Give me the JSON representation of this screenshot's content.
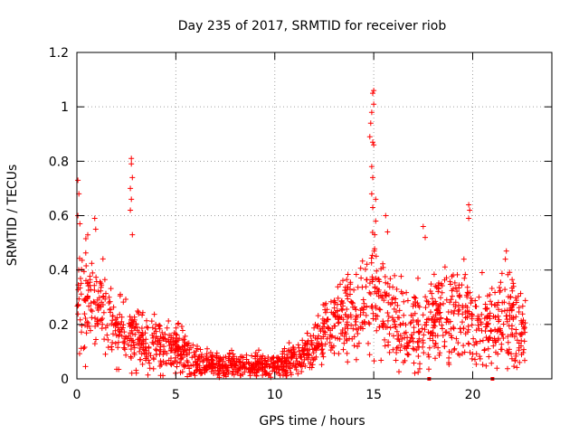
{
  "chart_data": {
    "type": "scatter",
    "title": "Day 235 of 2017, SRMTID for receiver riob",
    "xlabel": "GPS time / hours",
    "ylabel": "SRMTID / TECUs",
    "xlim": [
      0,
      24
    ],
    "ylim": [
      0,
      1.2
    ],
    "xticks": [
      0,
      5,
      10,
      15,
      20
    ],
    "xtick_labels": [
      "0",
      "5",
      "10",
      "15",
      "20"
    ],
    "yticks": [
      0,
      0.2,
      0.4,
      0.6,
      0.8,
      1,
      1.2
    ],
    "ytick_labels": [
      "0",
      "0.2",
      "0.4",
      "0.6",
      "0.8",
      "1",
      "1.2"
    ],
    "grid": true,
    "marker": "+",
    "series_color": "#ff0000",
    "envelope": {
      "description": "approximate cluster of SRMTID points: hour, typical value, spread",
      "x": [
        0.0,
        0.5,
        1.0,
        1.5,
        2.0,
        2.5,
        3.0,
        3.5,
        4.0,
        4.5,
        5.0,
        5.5,
        6.0,
        7.0,
        8.0,
        9.0,
        10.0,
        10.5,
        11.0,
        11.5,
        12.0,
        12.5,
        13.0,
        13.5,
        14.0,
        14.5,
        15.0,
        15.5,
        16.0,
        16.5,
        17.0,
        17.5,
        18.0,
        18.5,
        19.0,
        19.5,
        20.0,
        20.5,
        21.0,
        21.5,
        22.0,
        22.5,
        22.7
      ],
      "center": [
        0.3,
        0.3,
        0.27,
        0.22,
        0.18,
        0.16,
        0.15,
        0.13,
        0.12,
        0.11,
        0.12,
        0.09,
        0.06,
        0.05,
        0.05,
        0.05,
        0.05,
        0.06,
        0.07,
        0.09,
        0.12,
        0.17,
        0.22,
        0.25,
        0.27,
        0.3,
        0.32,
        0.26,
        0.22,
        0.18,
        0.17,
        0.2,
        0.24,
        0.26,
        0.25,
        0.24,
        0.22,
        0.2,
        0.2,
        0.21,
        0.21,
        0.19,
        0.15
      ],
      "spread": [
        0.16,
        0.14,
        0.12,
        0.1,
        0.09,
        0.08,
        0.08,
        0.07,
        0.07,
        0.06,
        0.06,
        0.05,
        0.04,
        0.03,
        0.03,
        0.03,
        0.03,
        0.04,
        0.04,
        0.05,
        0.06,
        0.09,
        0.11,
        0.12,
        0.12,
        0.13,
        0.14,
        0.13,
        0.12,
        0.11,
        0.11,
        0.12,
        0.13,
        0.13,
        0.12,
        0.12,
        0.11,
        0.11,
        0.11,
        0.11,
        0.11,
        0.1,
        0.1
      ]
    },
    "highlights": [
      {
        "x": 0.05,
        "y": 0.73
      },
      {
        "x": 0.1,
        "y": 0.68
      },
      {
        "x": 0.05,
        "y": 0.6
      },
      {
        "x": 0.15,
        "y": 0.57
      },
      {
        "x": 0.9,
        "y": 0.59
      },
      {
        "x": 0.95,
        "y": 0.55
      },
      {
        "x": 2.75,
        "y": 0.81
      },
      {
        "x": 2.75,
        "y": 0.79
      },
      {
        "x": 2.8,
        "y": 0.74
      },
      {
        "x": 2.7,
        "y": 0.7
      },
      {
        "x": 2.75,
        "y": 0.66
      },
      {
        "x": 2.7,
        "y": 0.62
      },
      {
        "x": 2.8,
        "y": 0.53
      },
      {
        "x": 14.8,
        "y": 0.89
      },
      {
        "x": 14.85,
        "y": 0.94
      },
      {
        "x": 14.9,
        "y": 0.98
      },
      {
        "x": 14.95,
        "y": 1.05
      },
      {
        "x": 15.0,
        "y": 1.06
      },
      {
        "x": 15.0,
        "y": 1.01
      },
      {
        "x": 14.95,
        "y": 0.87
      },
      {
        "x": 15.0,
        "y": 0.86
      },
      {
        "x": 14.9,
        "y": 0.78
      },
      {
        "x": 14.95,
        "y": 0.74
      },
      {
        "x": 14.9,
        "y": 0.68
      },
      {
        "x": 14.95,
        "y": 0.63
      },
      {
        "x": 15.1,
        "y": 0.66
      },
      {
        "x": 15.1,
        "y": 0.58
      },
      {
        "x": 15.05,
        "y": 0.53
      },
      {
        "x": 15.6,
        "y": 0.6
      },
      {
        "x": 15.7,
        "y": 0.54
      },
      {
        "x": 17.5,
        "y": 0.56
      },
      {
        "x": 17.6,
        "y": 0.52
      },
      {
        "x": 19.8,
        "y": 0.64
      },
      {
        "x": 19.85,
        "y": 0.62
      },
      {
        "x": 19.8,
        "y": 0.59
      },
      {
        "x": 21.7,
        "y": 0.47
      },
      {
        "x": 21.65,
        "y": 0.44
      }
    ],
    "zero_markers": [
      {
        "x": 17.8,
        "y": 0
      },
      {
        "x": 21.0,
        "y": 0
      }
    ]
  }
}
